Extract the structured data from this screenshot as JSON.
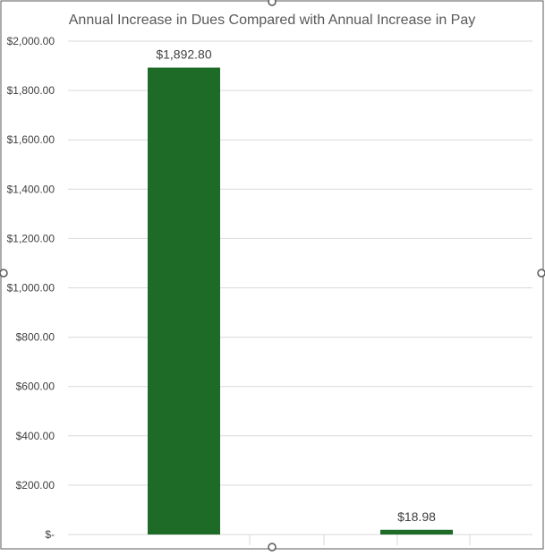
{
  "chart_data": {
    "type": "bar",
    "title": "Annual Increase in Dues Compared with Annual Increase in Pay",
    "xlabel": "",
    "ylabel": "",
    "categories": [
      "",
      ""
    ],
    "values": [
      1892.8,
      18.98
    ],
    "data_labels": [
      "$1,892.80",
      "$18.98"
    ],
    "ylim": [
      0,
      2000
    ],
    "y_ticks": [
      0,
      200,
      400,
      600,
      800,
      1000,
      1200,
      1400,
      1600,
      1800,
      2000
    ],
    "y_tick_labels": [
      "$-",
      "$200.00",
      "$400.00",
      "$600.00",
      "$800.00",
      "$1,000.00",
      "$1,200.00",
      "$1,400.00",
      "$1,600.00",
      "$1,800.00",
      "$2,000.00"
    ],
    "grid": true,
    "legend": "none",
    "colors": {
      "bar": "#1e6b27",
      "grid": "#d9d9d9",
      "title": "#595959",
      "tick_text": "#404040",
      "label_text": "#404040",
      "frame": "#595959"
    }
  }
}
